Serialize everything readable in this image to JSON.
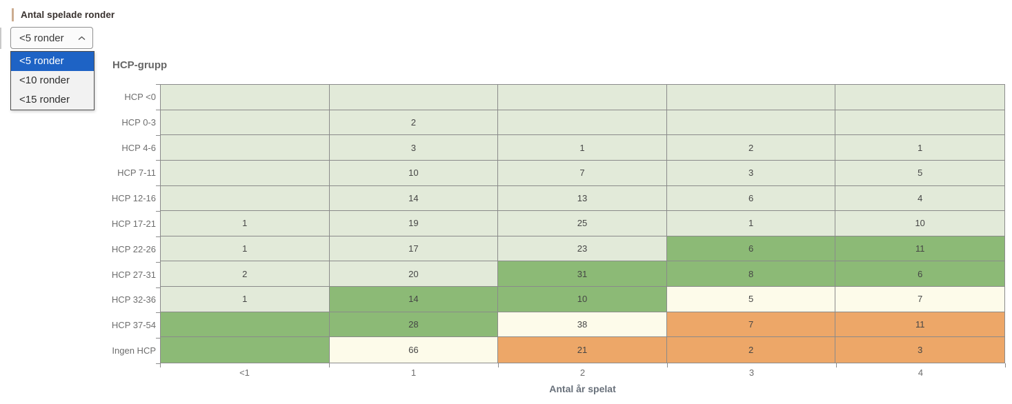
{
  "filter": {
    "label": "Antal spelade ronder",
    "selected": "<5 ronder",
    "options": [
      "<5 ronder",
      "<10 ronder",
      "<15 ronder"
    ],
    "selected_index": 0,
    "accent_color": "#ccac90",
    "highlight_color": "#1e63c5"
  },
  "chart_data": {
    "type": "heatmap",
    "title": "HCP-grupp",
    "xlabel": "Antal år spelat",
    "x_categories": [
      "<1",
      "1",
      "2",
      "3",
      "4"
    ],
    "y_categories": [
      "HCP <0",
      "HCP 0-3",
      "HCP 4-6",
      "HCP 7-11",
      "HCP 12-16",
      "HCP 17-21",
      "HCP 22-26",
      "HCP 27-31",
      "HCP 32-36",
      "HCP 37-54",
      "Ingen HCP"
    ],
    "values": [
      [
        null,
        null,
        null,
        null,
        null
      ],
      [
        null,
        2,
        null,
        null,
        null
      ],
      [
        null,
        3,
        1,
        2,
        1
      ],
      [
        null,
        10,
        7,
        3,
        5
      ],
      [
        null,
        14,
        13,
        6,
        4
      ],
      [
        1,
        19,
        25,
        1,
        10
      ],
      [
        1,
        17,
        23,
        6,
        11
      ],
      [
        2,
        20,
        31,
        8,
        6
      ],
      [
        1,
        14,
        10,
        5,
        7
      ],
      [
        null,
        28,
        38,
        7,
        11
      ],
      [
        null,
        66,
        21,
        2,
        3
      ]
    ],
    "cell_colors": [
      [
        "pale",
        "pale",
        "pale",
        "pale",
        "pale"
      ],
      [
        "pale",
        "pale",
        "pale",
        "pale",
        "pale"
      ],
      [
        "pale",
        "pale",
        "pale",
        "pale",
        "pale"
      ],
      [
        "pale",
        "pale",
        "pale",
        "pale",
        "pale"
      ],
      [
        "pale",
        "pale",
        "pale",
        "pale",
        "pale"
      ],
      [
        "pale",
        "pale",
        "pale",
        "pale",
        "pale"
      ],
      [
        "pale",
        "pale",
        "pale",
        "green",
        "green"
      ],
      [
        "pale",
        "pale",
        "green",
        "green",
        "green"
      ],
      [
        "pale",
        "green",
        "green",
        "cream",
        "cream"
      ],
      [
        "green",
        "green",
        "cream",
        "orange",
        "orange"
      ],
      [
        "green",
        "cream",
        "orange",
        "orange",
        "orange"
      ]
    ],
    "palette": {
      "pale": "#e2ead9",
      "green": "#8cba76",
      "cream": "#fdfbea",
      "orange": "#eda768"
    },
    "grid": true,
    "legend": "none"
  }
}
